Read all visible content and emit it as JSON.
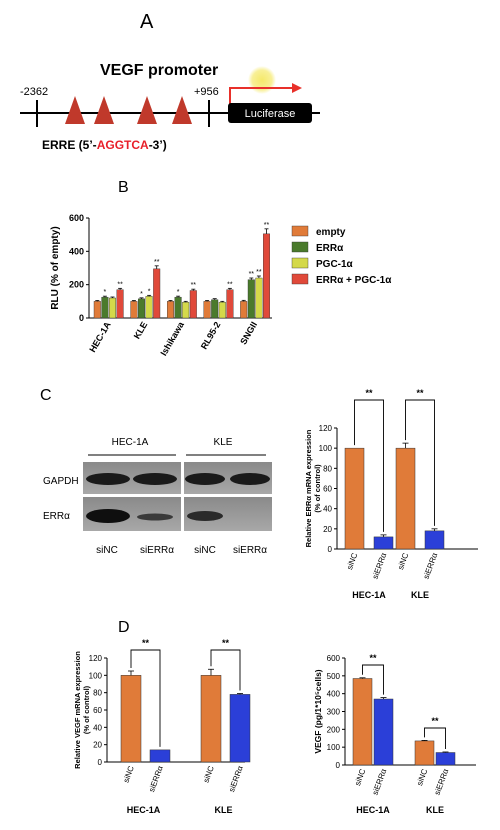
{
  "panels": {
    "A": "A",
    "B": "B",
    "C": "C",
    "D": "D"
  },
  "promoter": {
    "title": "VEGF promoter",
    "left_coord": "-2362",
    "right_coord": "+956",
    "reporter": "Luciferase",
    "erre_prefix": "ERRE (5’-",
    "erre_seq": "AGGTCA",
    "erre_suffix": "-3’)",
    "element_count": 4,
    "colors": {
      "triangle": "#c0392b",
      "seq": "#e8202a",
      "arrow": "#e8302a",
      "box": "#000000"
    }
  },
  "colors": {
    "orange": "#e07b39",
    "green": "#4a7a2c",
    "yellow": "#d4d94a",
    "red": "#e0493a",
    "blue": "#2b3fd8"
  },
  "chart_data": [
    {
      "panel": "B",
      "type": "bar",
      "ylabel": "RLU (% of empty)",
      "ylim": [
        0,
        600
      ],
      "yticks": [
        0,
        200,
        400,
        600
      ],
      "categories": [
        "HEC-1A",
        "KLE",
        "Ishikawa",
        "RL95-2",
        "SNGII"
      ],
      "legend_position": "right",
      "series": [
        {
          "name": "empty",
          "color": "orange",
          "values": [
            100,
            100,
            100,
            100,
            100
          ],
          "errors": [
            5,
            5,
            5,
            5,
            6
          ],
          "marks": [
            "",
            "",
            "",
            "",
            ""
          ]
        },
        {
          "name": "ERRα",
          "color": "green",
          "values": [
            125,
            115,
            125,
            110,
            230
          ],
          "errors": [
            6,
            6,
            6,
            6,
            10
          ],
          "marks": [
            "*",
            "*",
            "*",
            "",
            "**"
          ]
        },
        {
          "name": "PGC-1α",
          "color": "yellow",
          "values": [
            120,
            130,
            95,
            95,
            240
          ],
          "errors": [
            6,
            6,
            5,
            5,
            12
          ],
          "marks": [
            "",
            "*",
            "",
            "",
            "**"
          ]
        },
        {
          "name": "ERRα + PGC-1α",
          "color": "red",
          "values": [
            170,
            295,
            165,
            170,
            505
          ],
          "errors": [
            8,
            18,
            8,
            8,
            30
          ],
          "marks": [
            "**",
            "**",
            "**",
            "**",
            "**"
          ]
        }
      ]
    },
    {
      "panel": "C",
      "type": "bar",
      "ylabel_line1": "Relative ERRα mRNA expression",
      "ylabel_line2": "(% of control)",
      "ylim": [
        0,
        120
      ],
      "yticks": [
        0,
        20,
        40,
        60,
        80,
        100,
        120
      ],
      "groups": [
        "HEC-1A",
        "KLE"
      ],
      "bar_labels": [
        "siNC",
        "siERRα"
      ],
      "values": [
        [
          100,
          12
        ],
        [
          100,
          18
        ]
      ],
      "errors": [
        [
          0,
          2
        ],
        [
          5,
          2
        ]
      ],
      "sig": [
        "**",
        "**"
      ]
    },
    {
      "panel": "D-left",
      "type": "bar",
      "ylabel_line1": "Relative VEGF mRNA expression",
      "ylabel_line2": "(% of control)",
      "ylim": [
        0,
        120
      ],
      "yticks": [
        0,
        20,
        40,
        60,
        80,
        100,
        120
      ],
      "groups": [
        "HEC-1A",
        "KLE"
      ],
      "bar_labels": [
        "siNC",
        "siERRα"
      ],
      "values": [
        [
          100,
          14
        ],
        [
          100,
          78
        ]
      ],
      "errors": [
        [
          5,
          0
        ],
        [
          7,
          1
        ]
      ],
      "sig": [
        "**",
        "**"
      ]
    },
    {
      "panel": "D-right",
      "type": "bar",
      "ylabel": "VEGF (pg/1*10⁵cells)",
      "ylim": [
        0,
        600
      ],
      "yticks": [
        0,
        100,
        200,
        300,
        400,
        500,
        600
      ],
      "groups": [
        "HEC-1A",
        "KLE"
      ],
      "bar_labels": [
        "siNC",
        "siERRα"
      ],
      "values": [
        [
          485,
          370
        ],
        [
          135,
          70
        ]
      ],
      "errors": [
        [
          4,
          8
        ],
        [
          3,
          3
        ]
      ],
      "sig": [
        "**",
        "**"
      ]
    }
  ],
  "blot": {
    "cell_lines": [
      "HEC-1A",
      "KLE"
    ],
    "rows": [
      "GAPDH",
      "ERRα"
    ],
    "lanes": [
      "siNC",
      "siERRα",
      "siNC",
      "siERRα"
    ]
  }
}
